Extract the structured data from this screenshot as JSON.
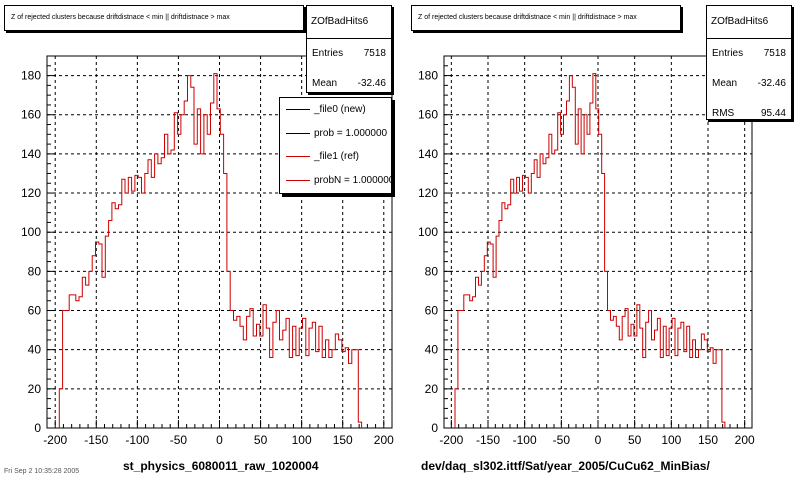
{
  "chart_data": [
    {
      "type": "histogram",
      "title": "Z of rejected clusters because driftdistnace < min || driftdistnace > max",
      "xlabel": "st_physics_6080011_raw_1020004",
      "ylabel": "",
      "xlim": [
        -210,
        210
      ],
      "ylim": [
        0,
        190
      ],
      "x_ticks": [
        -200,
        -150,
        -100,
        -50,
        0,
        50,
        100,
        150,
        200
      ],
      "y_ticks": [
        0,
        20,
        40,
        60,
        80,
        100,
        120,
        140,
        160,
        180
      ],
      "grid": true,
      "bin_start": -195,
      "bin_width": 4,
      "values": [
        20,
        60,
        60,
        68,
        68,
        65,
        67,
        77,
        73,
        80,
        88,
        95,
        94,
        77,
        98,
        106,
        115,
        112,
        114,
        127,
        120,
        128,
        121,
        129,
        128,
        120,
        130,
        137,
        128,
        140,
        135,
        138,
        150,
        140,
        142,
        161,
        150,
        160,
        167,
        180,
        174,
        145,
        163,
        140,
        160,
        150,
        166,
        181,
        163,
        150,
        130,
        80,
        60,
        55,
        57,
        52,
        45,
        57,
        61,
        47,
        53,
        47,
        63,
        51,
        36,
        54,
        60,
        45,
        50,
        56,
        36,
        52,
        37,
        51,
        56,
        37,
        51,
        54,
        39,
        52,
        36,
        45,
        36,
        40,
        48,
        45,
        39,
        41,
        33,
        40,
        40,
        3
      ],
      "series": [
        {
          "name": "_file0 (new)",
          "color": "#000000"
        },
        {
          "name": "_file1 (ref)",
          "color": "#cc0000"
        }
      ],
      "stats": {
        "name": "ZOfBadHits6",
        "entries": "7518",
        "mean": "-32.46"
      },
      "legend": {
        "placement": "top-right",
        "entries": [
          "_file0 (new)",
          "prob = 1.000000",
          "_file1 (ref)",
          "probN = 1.000000"
        ],
        "colors": [
          "#000000",
          "#000000",
          "#cc0000",
          "#cc0000"
        ]
      }
    },
    {
      "type": "histogram",
      "title": "Z of rejected clusters because driftdistnace < min || driftdistnace > max",
      "xlabel": "dev/daq_sl302.ittf/Sat/year_2005/CuCu62_MinBias/",
      "ylabel": "",
      "xlim": [
        -210,
        210
      ],
      "ylim": [
        0,
        190
      ],
      "x_ticks": [
        -200,
        -150,
        -100,
        -50,
        0,
        50,
        100,
        150,
        200
      ],
      "y_ticks": [
        0,
        20,
        40,
        60,
        80,
        100,
        120,
        140,
        160,
        180
      ],
      "grid": true,
      "bin_start": -195,
      "bin_width": 4,
      "values": [
        20,
        60,
        60,
        68,
        68,
        65,
        67,
        77,
        73,
        80,
        88,
        95,
        94,
        77,
        98,
        106,
        115,
        112,
        114,
        127,
        120,
        128,
        121,
        129,
        128,
        120,
        130,
        137,
        128,
        140,
        135,
        138,
        150,
        140,
        142,
        161,
        150,
        160,
        167,
        180,
        174,
        145,
        163,
        140,
        160,
        150,
        166,
        181,
        163,
        150,
        130,
        80,
        60,
        55,
        57,
        52,
        45,
        57,
        61,
        47,
        53,
        47,
        63,
        51,
        36,
        54,
        60,
        45,
        50,
        56,
        36,
        52,
        37,
        51,
        56,
        37,
        51,
        54,
        39,
        52,
        36,
        45,
        36,
        40,
        48,
        45,
        39,
        41,
        33,
        40,
        40,
        3
      ],
      "series": [
        {
          "name": "",
          "color": "#cc0000"
        }
      ],
      "stats": {
        "name": "ZOfBadHits6",
        "entries": "7518",
        "mean": "-32.46",
        "rms": "95.44"
      }
    }
  ],
  "labels": {
    "entries": "Entries",
    "mean": "Mean",
    "rms": "RMS"
  },
  "footer": "Fri Sep 2 10:35:28 2005"
}
